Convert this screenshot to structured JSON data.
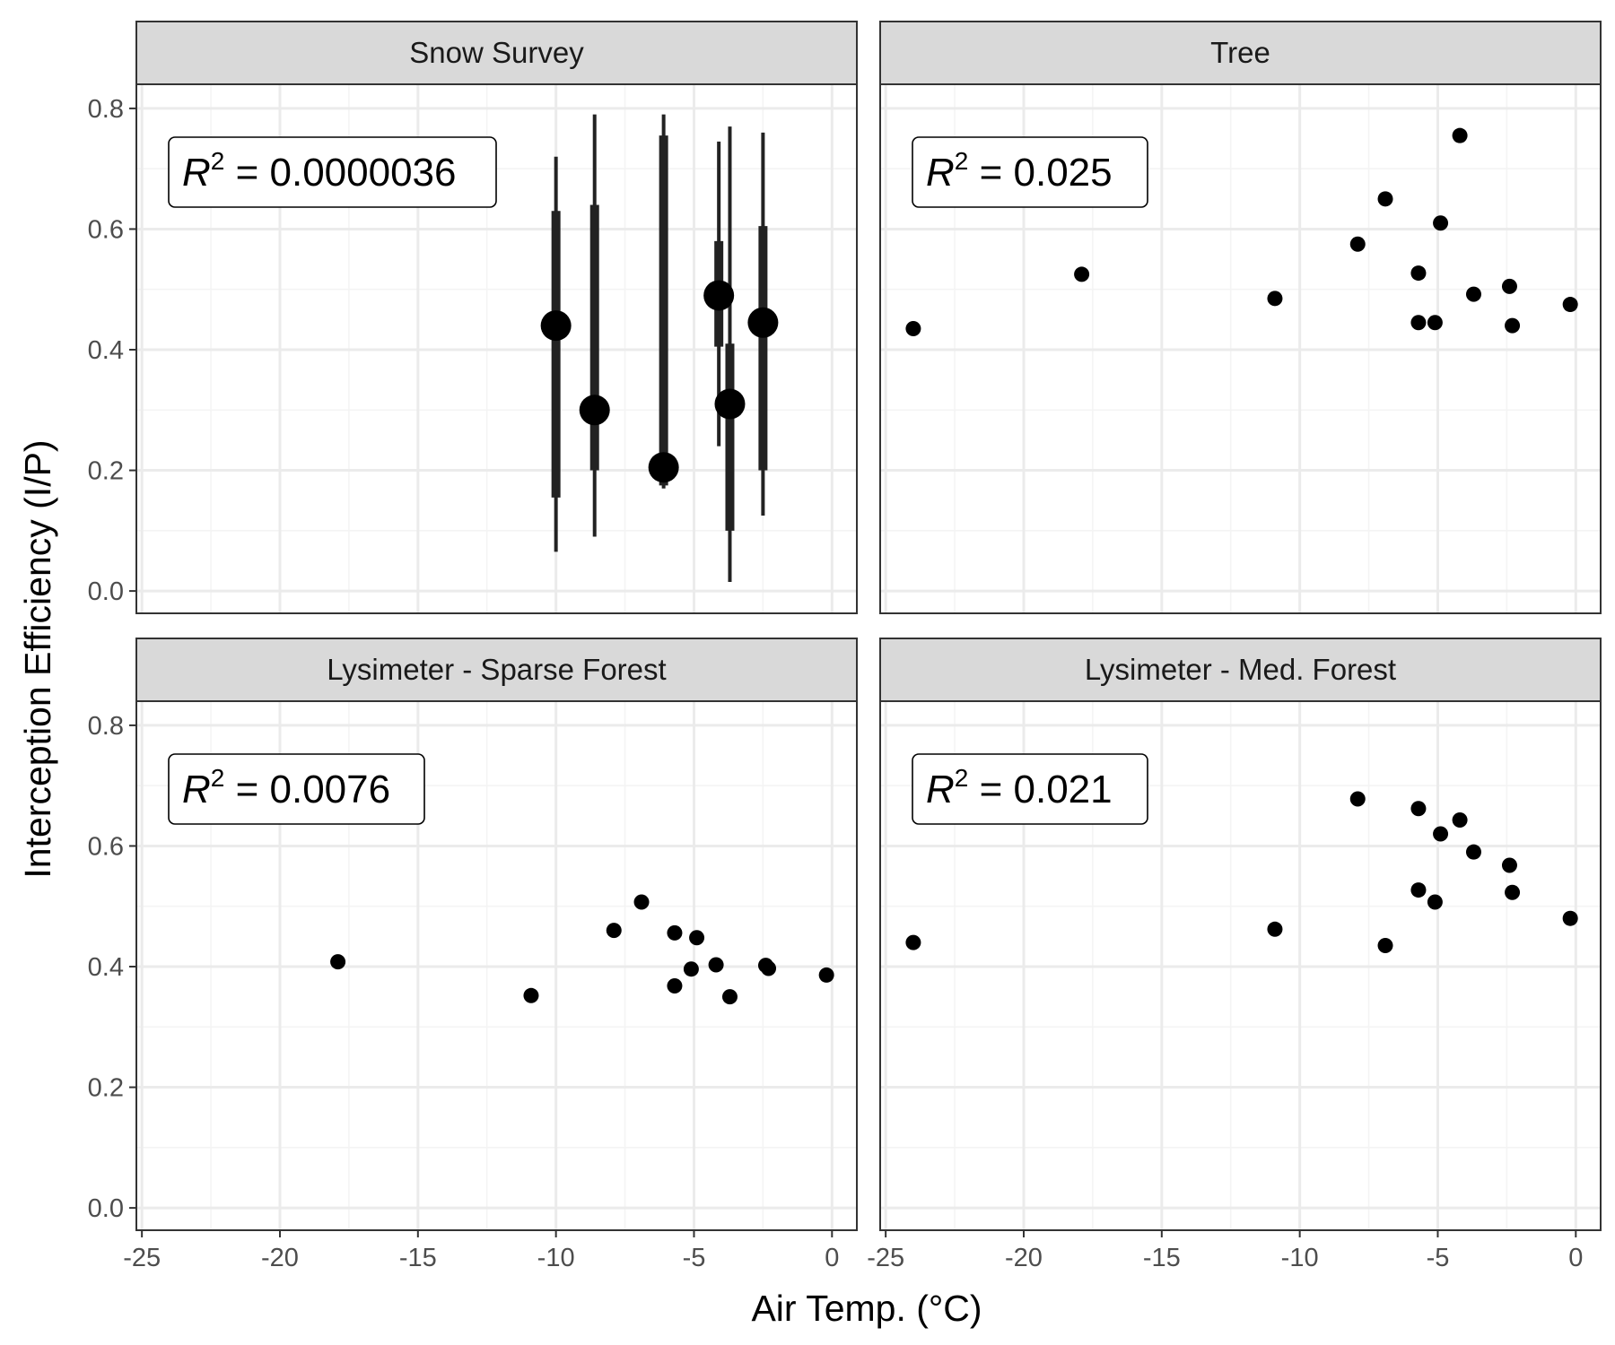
{
  "chart_data": {
    "type": "scatter",
    "layout": "facet-grid-2x2",
    "xlabel": "Air Temp. (°C)",
    "ylabel": "Interception Efficiency (I/P)",
    "xlim": [
      -25,
      0
    ],
    "ylim": [
      0,
      0.8
    ],
    "x_ticks": [
      -25,
      -20,
      -15,
      -10,
      -5,
      0
    ],
    "x_tick_labels": [
      "-25",
      "-20",
      "-15",
      "-10",
      "-5",
      "0"
    ],
    "y_ticks": [
      0.0,
      0.2,
      0.4,
      0.6,
      0.8
    ],
    "y_tick_labels": [
      "0.0",
      "0.2",
      "0.4",
      "0.6",
      "0.8"
    ],
    "grid": true,
    "colors": {
      "points": "#000000",
      "strip_fill": "#d9d9d9",
      "panel_border": "#333333",
      "grid_major": "#ebebeb",
      "grid_minor": "#f4f4f4"
    },
    "panels": [
      {
        "title": "Snow Survey",
        "r2_prefix": "R",
        "r2_exp": "2",
        "r2_value": " = 0.0000036",
        "points": [
          {
            "x": -10.0,
            "y": 0.44,
            "inner": [
              0.155,
              0.63
            ],
            "outer": [
              0.065,
              0.72
            ]
          },
          {
            "x": -8.6,
            "y": 0.3,
            "inner": [
              0.2,
              0.64
            ],
            "outer": [
              0.09,
              0.79
            ]
          },
          {
            "x": -6.1,
            "y": 0.205,
            "inner": [
              0.175,
              0.755
            ],
            "outer": [
              0.17,
              0.79
            ]
          },
          {
            "x": -4.1,
            "y": 0.49,
            "inner": [
              0.405,
              0.58
            ],
            "outer": [
              0.24,
              0.745
            ]
          },
          {
            "x": -3.7,
            "y": 0.31,
            "inner": [
              0.1,
              0.41
            ],
            "outer": [
              0.015,
              0.77
            ]
          },
          {
            "x": -2.5,
            "y": 0.445,
            "inner": [
              0.2,
              0.605
            ],
            "outer": [
              0.125,
              0.76
            ]
          }
        ]
      },
      {
        "title": "Tree",
        "r2_prefix": "R",
        "r2_exp": "2",
        "r2_value": " = 0.025",
        "points": [
          {
            "x": -24.0,
            "y": 0.435
          },
          {
            "x": -17.9,
            "y": 0.525
          },
          {
            "x": -10.9,
            "y": 0.485
          },
          {
            "x": -7.9,
            "y": 0.575
          },
          {
            "x": -6.9,
            "y": 0.65
          },
          {
            "x": -5.7,
            "y": 0.527
          },
          {
            "x": -5.7,
            "y": 0.445
          },
          {
            "x": -5.1,
            "y": 0.445
          },
          {
            "x": -4.9,
            "y": 0.61
          },
          {
            "x": -4.2,
            "y": 0.755
          },
          {
            "x": -3.7,
            "y": 0.492
          },
          {
            "x": -2.4,
            "y": 0.505
          },
          {
            "x": -2.3,
            "y": 0.44
          },
          {
            "x": -0.2,
            "y": 0.475
          }
        ]
      },
      {
        "title": "Lysimeter - Sparse Forest",
        "r2_prefix": "R",
        "r2_exp": "2",
        "r2_value": " = 0.0076",
        "points": [
          {
            "x": -17.9,
            "y": 0.408
          },
          {
            "x": -10.9,
            "y": 0.352
          },
          {
            "x": -7.9,
            "y": 0.46
          },
          {
            "x": -6.9,
            "y": 0.507
          },
          {
            "x": -5.7,
            "y": 0.456
          },
          {
            "x": -5.7,
            "y": 0.368
          },
          {
            "x": -5.1,
            "y": 0.396
          },
          {
            "x": -4.9,
            "y": 0.448
          },
          {
            "x": -4.2,
            "y": 0.403
          },
          {
            "x": -3.7,
            "y": 0.35
          },
          {
            "x": -2.4,
            "y": 0.402
          },
          {
            "x": -2.3,
            "y": 0.397
          },
          {
            "x": -0.2,
            "y": 0.386
          }
        ]
      },
      {
        "title": "Lysimeter - Med. Forest",
        "r2_prefix": "R",
        "r2_exp": "2",
        "r2_value": " = 0.021",
        "points": [
          {
            "x": -24.0,
            "y": 0.44
          },
          {
            "x": -10.9,
            "y": 0.462
          },
          {
            "x": -7.9,
            "y": 0.678
          },
          {
            "x": -6.9,
            "y": 0.435
          },
          {
            "x": -5.7,
            "y": 0.662
          },
          {
            "x": -5.7,
            "y": 0.527
          },
          {
            "x": -5.1,
            "y": 0.507
          },
          {
            "x": -4.9,
            "y": 0.62
          },
          {
            "x": -4.2,
            "y": 0.643
          },
          {
            "x": -3.7,
            "y": 0.59
          },
          {
            "x": -2.4,
            "y": 0.568
          },
          {
            "x": -2.3,
            "y": 0.523
          },
          {
            "x": -0.2,
            "y": 0.48
          }
        ]
      }
    ]
  }
}
